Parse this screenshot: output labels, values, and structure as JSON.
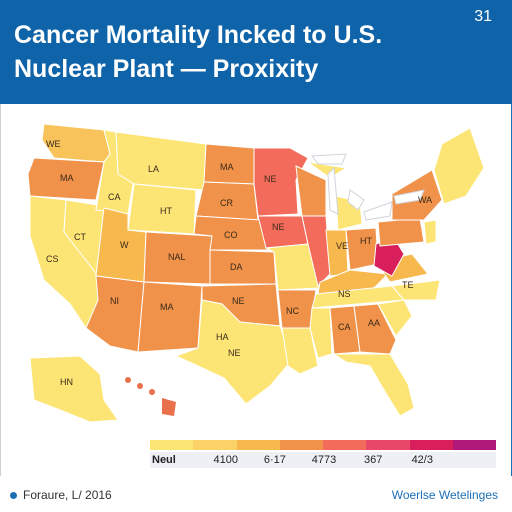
{
  "header": {
    "title_line1": "Cancer Mortality Incked  to U.S.",
    "title_line2": "Nuclear Plant — Proxixity",
    "page_number": "31"
  },
  "map": {
    "region": "United States (lower 48 + Alaska, Hawaii)",
    "state_labels": [
      {
        "text": "WE",
        "color": "#f7c35a"
      },
      {
        "text": "MA",
        "color": "#f0924a"
      },
      {
        "text": "LA",
        "color": "#fde575"
      },
      {
        "text": "CA",
        "color": "#fde575"
      },
      {
        "text": "HT",
        "color": "#fde575"
      },
      {
        "text": "MA",
        "color": "#f0924a"
      },
      {
        "text": "CR",
        "color": "#f0924a"
      },
      {
        "text": "NE",
        "color": "#f36b5a"
      },
      {
        "text": "CT",
        "color": "#fde575"
      },
      {
        "text": "W",
        "color": "#f7b84e"
      },
      {
        "text": "NAL",
        "color": "#f0924a"
      },
      {
        "text": "CO",
        "color": "#f0924a"
      },
      {
        "text": "CS",
        "color": "#fde575"
      },
      {
        "text": "DA",
        "color": "#f0924a"
      },
      {
        "text": "NI",
        "color": "#f0924a"
      },
      {
        "text": "MA",
        "color": "#f0924a"
      },
      {
        "text": "NE",
        "color": "#f0924a"
      },
      {
        "text": "NC",
        "color": "#f0924a"
      },
      {
        "text": "NE",
        "color": "#f36b5a"
      },
      {
        "text": "VE",
        "color": "#f7b84e"
      },
      {
        "text": "HT",
        "color": "#f0924a"
      },
      {
        "text": "WA",
        "color": "#f7b84e"
      },
      {
        "text": "NS",
        "color": "#fde575"
      },
      {
        "text": "TE",
        "color": "#fde575"
      },
      {
        "text": "CA",
        "color": "#f0924a"
      },
      {
        "text": "AA",
        "color": "#f0924a"
      },
      {
        "text": "HA",
        "color": "#f0924a"
      },
      {
        "text": "NE",
        "color": "#fde575"
      },
      {
        "text": "HN",
        "color": "#fde575"
      }
    ],
    "colors": {
      "highlight_state": "#d81e5b",
      "hawaii": "#e8704a",
      "lakes": "#ffffff"
    }
  },
  "legend": {
    "colors": [
      "#fde575",
      "#fbd168",
      "#f7b84e",
      "#f0924a",
      "#f36b5a",
      "#e8476a",
      "#d81e5b",
      "#b0187a"
    ],
    "labels": [
      "Neul",
      "4100",
      "6·17",
      "4773",
      "367",
      "42/3",
      ""
    ]
  },
  "footer": {
    "source": "Foraure, L/ 2016",
    "brand": "Woerlse Wetelinges"
  }
}
